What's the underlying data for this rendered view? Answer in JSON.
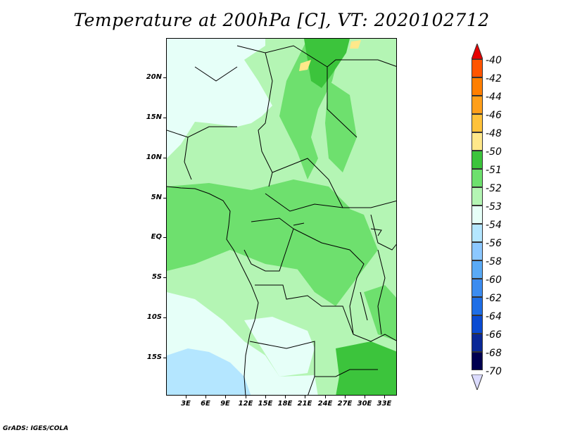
{
  "title": "Temperature at 200hPa [C], VT: 2020102712",
  "credit": "GrADS: IGES/COLA",
  "map": {
    "lat_labels": [
      "20N",
      "15N",
      "10N",
      "5N",
      "EQ",
      "5S",
      "10S",
      "15S"
    ],
    "lon_labels": [
      "3E",
      "6E",
      "9E",
      "12E",
      "15E",
      "18E",
      "21E",
      "24E",
      "27E",
      "30E",
      "33E"
    ]
  },
  "colorbar": {
    "labels": [
      "-40",
      "-42",
      "-44",
      "-46",
      "-48",
      "-50",
      "-51",
      "-52",
      "-53",
      "-54",
      "-56",
      "-58",
      "-60",
      "-62",
      "-64",
      "-66",
      "-68",
      "-70"
    ],
    "colors": [
      "#ff3300",
      "#ff5500",
      "#ff7f00",
      "#ff9f1a",
      "#ffc23a",
      "#ffe88a",
      "#3cc43c",
      "#6ee06e",
      "#b4f5b4",
      "#e6fff8",
      "#b4e6ff",
      "#8cc8ff",
      "#5aaaf5",
      "#3c8cf0",
      "#1e6ee6",
      "#0a4bd2",
      "#0a2896",
      "#000050",
      "#dcdcff"
    ]
  }
}
